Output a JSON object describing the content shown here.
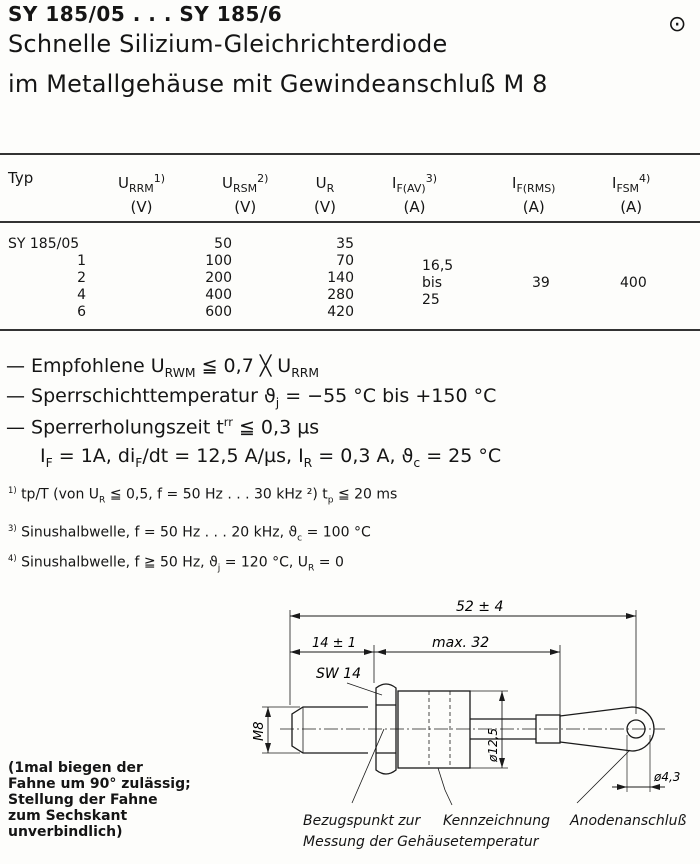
{
  "header": {
    "title": "SY 185/05 . . . SY 185/6",
    "subtitle_line1": "Schnelle Silizium-Gleichrichterdiode",
    "subtitle_line2": "im Metallgehäuse mit Gewindeanschluß M 8",
    "corner_symbol": "⊙"
  },
  "table": {
    "headers": [
      {
        "main": "Typ",
        "sub": "",
        "sup": "",
        "unit": ""
      },
      {
        "main": "U",
        "sub": "RRM",
        "sup": "1)",
        "unit": "(V)"
      },
      {
        "main": "U",
        "sub": "RSM",
        "sup": "2)",
        "unit": "(V)"
      },
      {
        "main": "U",
        "sub": "R",
        "sup": "",
        "unit": "(V)"
      },
      {
        "main": "I",
        "sub": "F(AV)",
        "sup": "3)",
        "unit": "(A)"
      },
      {
        "main": "I",
        "sub": "F(RMS)",
        "sup": "",
        "unit": "(A)"
      },
      {
        "main": "I",
        "sub": "FSM",
        "sup": "4)",
        "unit": "(A)"
      }
    ],
    "rows": [
      {
        "typ": "SY 185/05",
        "urrm": "50",
        "ur": "35"
      },
      {
        "typ": "1",
        "urrm": "100",
        "ur": "70"
      },
      {
        "typ": "2",
        "urrm": "200",
        "ur": "140"
      },
      {
        "typ": "4",
        "urrm": "400",
        "ur": "280"
      },
      {
        "typ": "6",
        "urrm": "600",
        "ur": "420"
      }
    ],
    "if_av": [
      "16,5",
      "bis",
      "25"
    ],
    "if_rms": "39",
    "ifsm": "400"
  },
  "specs": [
    {
      "dash": "—",
      "text": "Empfohlene U",
      "sub": "RWM",
      "rest": " ≦ 0,7 ╳ U",
      "sub2": "RRM",
      "rest2": ""
    },
    {
      "dash": "—",
      "text": "Sperrschichttemperatur     ϑ",
      "sub": "j",
      "rest": " = −55 °C bis +150 °C",
      "sub2": "",
      "rest2": ""
    },
    {
      "dash": "—",
      "text": "Sperrerholungszeit t",
      "sub": "",
      "rest": "",
      "sup": "rr",
      "rest2": " ≦ 0,3 µs"
    },
    {
      "dash": "",
      "text": "I",
      "sub": "F",
      "rest": " = 1A, di",
      "sub2": "F",
      "rest2": "/dt = 12,5 A/µs, I",
      "sub3": "R",
      "rest3": " = 0,3 A, ϑ",
      "sub4": "c",
      "rest4": " =  25 °C"
    }
  ],
  "footnotes": [
    {
      "mark": "1)",
      "text": "tp/T (von U",
      "sub": "R",
      "rest": " ≦ 0,5, f = 50 Hz . . . 30 kHz  ²) t",
      "sub2": "p",
      "rest2": " ≦ 20 ms"
    },
    {
      "mark": "3)",
      "text": "Sinushalbwelle, f = 50 Hz . . . 20 kHz, ϑ",
      "sub": "c",
      "rest": " = 100 °C"
    },
    {
      "mark": "4)",
      "text": "Sinushalbwelle, f ≧ 50 Hz, ϑ",
      "sub": "j",
      "rest": " = 120 °C, U",
      "sub2": "R",
      "rest2": " = 0"
    }
  ],
  "drawing": {
    "dim_total": "52 ± 4",
    "dim_thread": "14 ± 1",
    "dim_max": "max. 32",
    "wrench": "SW 14",
    "thread": "M8",
    "body_dia": "ø12,5",
    "hole_dia": "ø4,3",
    "label_reference": "Bezugspunkt zur",
    "label_reference2": "Messung der Gehäusetemperatur",
    "label_marking": "Kennzeichnung",
    "label_anode": "Anodenanschluß",
    "note": "(1mal biegen der\nFahne um 90° zulässig;\nStellung der Fahne\nzum Sechskant\nunverbindlich)"
  }
}
